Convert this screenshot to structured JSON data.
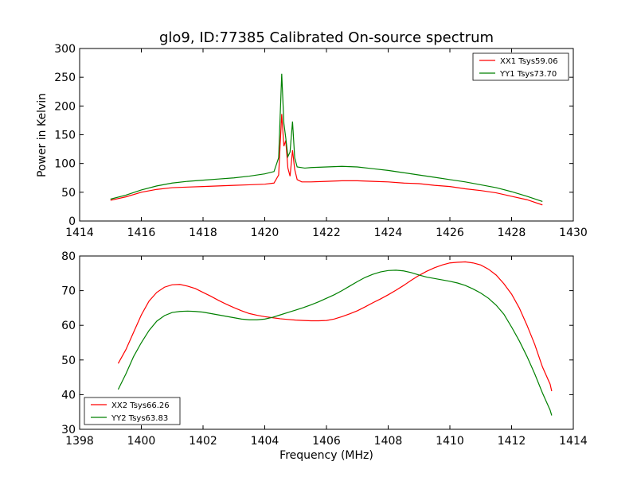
{
  "chart_data": [
    {
      "type": "line",
      "title": "glo9, ID:77385 Calibrated On-source spectrum",
      "xlabel": "",
      "ylabel": "Power in Kelvin",
      "xlim": [
        1414,
        1430
      ],
      "ylim": [
        0,
        300
      ],
      "xticks": [
        "1414",
        "1416",
        "1418",
        "1420",
        "1422",
        "1424",
        "1426",
        "1428",
        "1430"
      ],
      "yticks": [
        "0",
        "50",
        "100",
        "150",
        "200",
        "250",
        "300"
      ],
      "legend_position": "top-right",
      "grid": false,
      "series": [
        {
          "name": "XX1 Tsys59.06",
          "color": "#ff0000",
          "points": [
            [
              1415.0,
              36
            ],
            [
              1415.5,
              42
            ],
            [
              1416.0,
              50
            ],
            [
              1416.5,
              55
            ],
            [
              1417.0,
              58
            ],
            [
              1417.5,
              59
            ],
            [
              1418.0,
              60
            ],
            [
              1418.5,
              61
            ],
            [
              1419.0,
              62
            ],
            [
              1419.5,
              63
            ],
            [
              1420.0,
              64
            ],
            [
              1420.3,
              66
            ],
            [
              1420.45,
              80
            ],
            [
              1420.55,
              186
            ],
            [
              1420.62,
              130
            ],
            [
              1420.68,
              140
            ],
            [
              1420.75,
              92
            ],
            [
              1420.82,
              78
            ],
            [
              1420.9,
              123
            ],
            [
              1420.97,
              90
            ],
            [
              1421.05,
              72
            ],
            [
              1421.2,
              68
            ],
            [
              1421.5,
              68
            ],
            [
              1422.0,
              69
            ],
            [
              1422.5,
              70
            ],
            [
              1423.0,
              70
            ],
            [
              1423.5,
              69
            ],
            [
              1424.0,
              68
            ],
            [
              1424.5,
              66
            ],
            [
              1425.0,
              65
            ],
            [
              1425.5,
              62
            ],
            [
              1426.0,
              60
            ],
            [
              1426.5,
              56
            ],
            [
              1427.0,
              53
            ],
            [
              1427.5,
              49
            ],
            [
              1428.0,
              43
            ],
            [
              1428.5,
              37
            ],
            [
              1429.0,
              28
            ]
          ]
        },
        {
          "name": "YY1 Tsys73.70",
          "color": "#008000",
          "points": [
            [
              1415.0,
              38
            ],
            [
              1415.5,
              45
            ],
            [
              1416.0,
              54
            ],
            [
              1416.5,
              61
            ],
            [
              1417.0,
              66
            ],
            [
              1417.5,
              69
            ],
            [
              1418.0,
              71
            ],
            [
              1418.5,
              73
            ],
            [
              1419.0,
              75
            ],
            [
              1419.5,
              78
            ],
            [
              1420.0,
              82
            ],
            [
              1420.3,
              86
            ],
            [
              1420.45,
              110
            ],
            [
              1420.55,
              256
            ],
            [
              1420.62,
              170
            ],
            [
              1420.68,
              145
            ],
            [
              1420.75,
              112
            ],
            [
              1420.82,
              120
            ],
            [
              1420.9,
              173
            ],
            [
              1420.97,
              110
            ],
            [
              1421.05,
              94
            ],
            [
              1421.3,
              92
            ],
            [
              1421.5,
              93
            ],
            [
              1422.0,
              94
            ],
            [
              1422.5,
              95
            ],
            [
              1423.0,
              94
            ],
            [
              1423.5,
              91
            ],
            [
              1424.0,
              88
            ],
            [
              1424.5,
              84
            ],
            [
              1425.0,
              80
            ],
            [
              1425.5,
              76
            ],
            [
              1426.0,
              72
            ],
            [
              1426.5,
              68
            ],
            [
              1427.0,
              63
            ],
            [
              1427.5,
              58
            ],
            [
              1428.0,
              51
            ],
            [
              1428.5,
              43
            ],
            [
              1429.0,
              34
            ]
          ]
        }
      ]
    },
    {
      "type": "line",
      "title": "",
      "xlabel": "Frequency (MHz)",
      "ylabel": "",
      "xlim": [
        1398,
        1414
      ],
      "ylim": [
        30,
        80
      ],
      "xticks": [
        "1398",
        "1400",
        "1402",
        "1404",
        "1406",
        "1408",
        "1410",
        "1412",
        "1414"
      ],
      "yticks": [
        "30",
        "40",
        "50",
        "60",
        "70",
        "80"
      ],
      "legend_position": "bottom-left",
      "grid": false,
      "series": [
        {
          "name": "XX2 Tsys66.26",
          "color": "#ff0000",
          "points": [
            [
              1399.25,
              49
            ],
            [
              1399.5,
              53
            ],
            [
              1399.75,
              58
            ],
            [
              1400.0,
              63
            ],
            [
              1400.25,
              67
            ],
            [
              1400.5,
              69.5
            ],
            [
              1400.75,
              71
            ],
            [
              1401.0,
              71.7
            ],
            [
              1401.25,
              71.8
            ],
            [
              1401.5,
              71.3
            ],
            [
              1401.75,
              70.6
            ],
            [
              1402.0,
              69.5
            ],
            [
              1402.25,
              68.4
            ],
            [
              1402.5,
              67.2
            ],
            [
              1402.75,
              66.1
            ],
            [
              1403.0,
              65.1
            ],
            [
              1403.25,
              64.2
            ],
            [
              1403.5,
              63.4
            ],
            [
              1403.75,
              62.9
            ],
            [
              1404.0,
              62.5
            ],
            [
              1404.25,
              62.2
            ],
            [
              1404.5,
              61.9
            ],
            [
              1404.75,
              61.7
            ],
            [
              1405.0,
              61.5
            ],
            [
              1405.25,
              61.4
            ],
            [
              1405.5,
              61.3
            ],
            [
              1405.75,
              61.3
            ],
            [
              1406.0,
              61.4
            ],
            [
              1406.25,
              61.8
            ],
            [
              1406.5,
              62.5
            ],
            [
              1406.75,
              63.3
            ],
            [
              1407.0,
              64.2
            ],
            [
              1407.25,
              65.3
            ],
            [
              1407.5,
              66.5
            ],
            [
              1407.75,
              67.6
            ],
            [
              1408.0,
              68.8
            ],
            [
              1408.25,
              70.1
            ],
            [
              1408.5,
              71.5
            ],
            [
              1408.75,
              73.0
            ],
            [
              1409.0,
              74.4
            ],
            [
              1409.25,
              75.6
            ],
            [
              1409.5,
              76.6
            ],
            [
              1409.75,
              77.4
            ],
            [
              1410.0,
              78.0
            ],
            [
              1410.25,
              78.2
            ],
            [
              1410.5,
              78.3
            ],
            [
              1410.75,
              78.0
            ],
            [
              1411.0,
              77.4
            ],
            [
              1411.25,
              76.2
            ],
            [
              1411.5,
              74.5
            ],
            [
              1411.75,
              72.0
            ],
            [
              1412.0,
              69.0
            ],
            [
              1412.25,
              65.0
            ],
            [
              1412.5,
              60.0
            ],
            [
              1412.75,
              54.5
            ],
            [
              1413.0,
              48.0
            ],
            [
              1413.25,
              43.0
            ],
            [
              1413.3,
              41.0
            ]
          ]
        },
        {
          "name": "YY2 Tsys63.83",
          "color": "#008000",
          "points": [
            [
              1399.25,
              41.5
            ],
            [
              1399.5,
              46
            ],
            [
              1399.75,
              51
            ],
            [
              1400.0,
              55
            ],
            [
              1400.25,
              58.5
            ],
            [
              1400.5,
              61.2
            ],
            [
              1400.75,
              62.8
            ],
            [
              1401.0,
              63.7
            ],
            [
              1401.25,
              64.0
            ],
            [
              1401.5,
              64.1
            ],
            [
              1401.75,
              64.0
            ],
            [
              1402.0,
              63.8
            ],
            [
              1402.25,
              63.4
            ],
            [
              1402.5,
              63.0
            ],
            [
              1402.75,
              62.6
            ],
            [
              1403.0,
              62.2
            ],
            [
              1403.25,
              61.8
            ],
            [
              1403.5,
              61.6
            ],
            [
              1403.75,
              61.6
            ],
            [
              1404.0,
              61.8
            ],
            [
              1404.25,
              62.3
            ],
            [
              1404.5,
              63.0
            ],
            [
              1404.75,
              63.7
            ],
            [
              1405.0,
              64.4
            ],
            [
              1405.25,
              65.1
            ],
            [
              1405.5,
              65.9
            ],
            [
              1405.75,
              66.8
            ],
            [
              1406.0,
              67.8
            ],
            [
              1406.25,
              68.8
            ],
            [
              1406.5,
              70.0
            ],
            [
              1406.75,
              71.3
            ],
            [
              1407.0,
              72.6
            ],
            [
              1407.25,
              73.8
            ],
            [
              1407.5,
              74.7
            ],
            [
              1407.75,
              75.4
            ],
            [
              1408.0,
              75.8
            ],
            [
              1408.25,
              75.9
            ],
            [
              1408.5,
              75.7
            ],
            [
              1408.75,
              75.2
            ],
            [
              1409.0,
              74.5
            ],
            [
              1409.25,
              73.9
            ],
            [
              1409.5,
              73.5
            ],
            [
              1409.75,
              73.1
            ],
            [
              1410.0,
              72.7
            ],
            [
              1410.25,
              72.2
            ],
            [
              1410.5,
              71.5
            ],
            [
              1410.75,
              70.5
            ],
            [
              1411.0,
              69.3
            ],
            [
              1411.25,
              67.8
            ],
            [
              1411.5,
              65.8
            ],
            [
              1411.75,
              63.2
            ],
            [
              1412.0,
              59.5
            ],
            [
              1412.25,
              55.5
            ],
            [
              1412.5,
              51.0
            ],
            [
              1412.75,
              46.0
            ],
            [
              1413.0,
              40.5
            ],
            [
              1413.25,
              35.5
            ],
            [
              1413.3,
              34.0
            ]
          ]
        }
      ]
    }
  ]
}
